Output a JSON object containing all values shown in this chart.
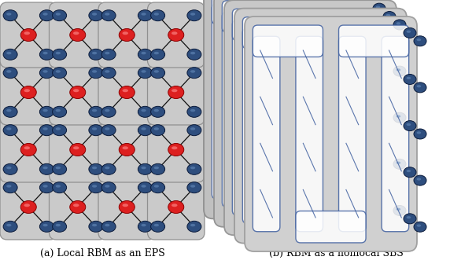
{
  "fig_width": 5.72,
  "fig_height": 3.36,
  "dpi": 100,
  "bg_color": "#ffffff",
  "panel_bg": "#d0d0d0",
  "panel_edge": "#999999",
  "node_blue": "#2e4e7e",
  "node_red": "#dd2020",
  "line_color": "#111111",
  "caption_a": "(a) Local RBM as an EPS",
  "caption_b": "(b) RBM as a nonlocal SBS",
  "caption_fontsize": 9
}
